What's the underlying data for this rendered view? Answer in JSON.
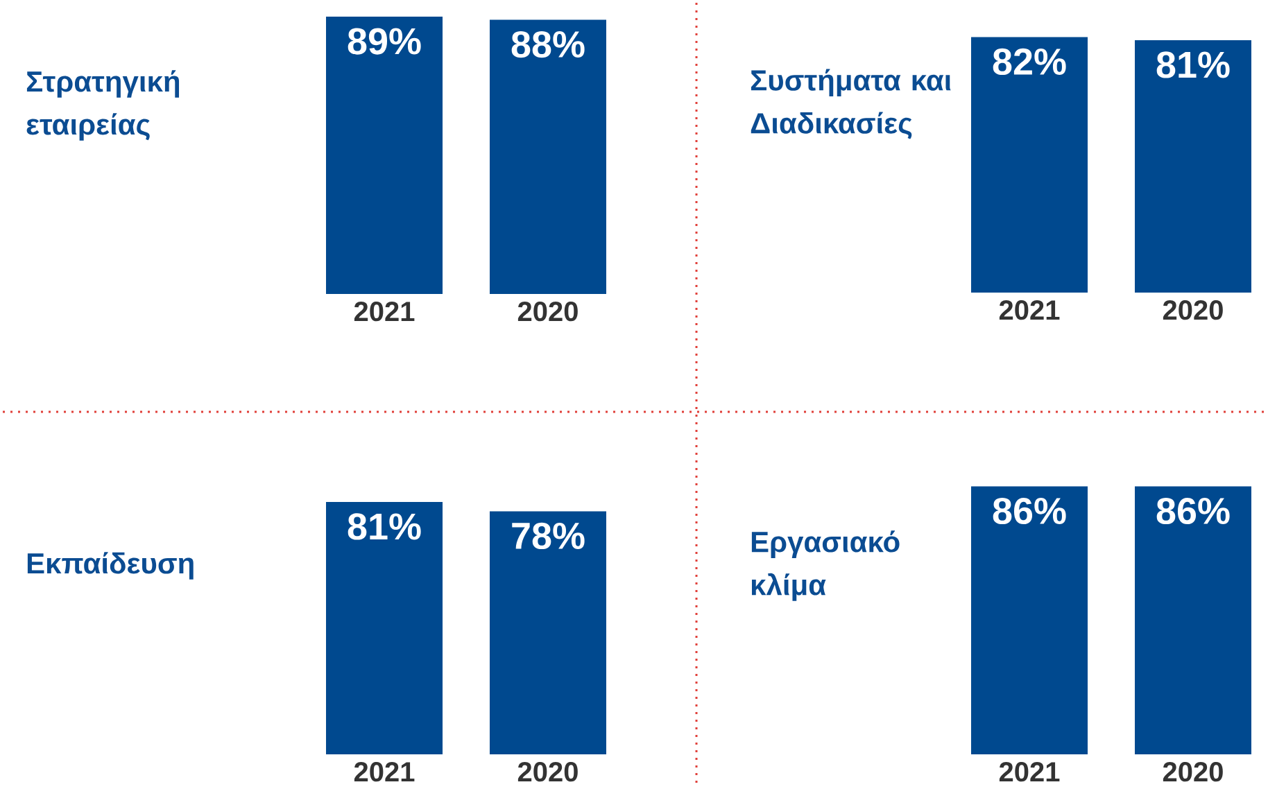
{
  "chart_data": [
    {
      "type": "bar",
      "title": "Στρατηγική εταιρείας",
      "categories": [
        "2021",
        "2020"
      ],
      "values": [
        89,
        88
      ],
      "value_labels": [
        "89%",
        "88%"
      ],
      "color": "#00498f"
    },
    {
      "type": "bar",
      "title": "Συστήματα και Διαδικασίες",
      "categories": [
        "2021",
        "2020"
      ],
      "values": [
        82,
        81
      ],
      "value_labels": [
        "82%",
        "81%"
      ],
      "color": "#00498f"
    },
    {
      "type": "bar",
      "title": "Εκπαίδευση",
      "categories": [
        "2021",
        "2020"
      ],
      "values": [
        81,
        78
      ],
      "value_labels": [
        "81%",
        "78%"
      ],
      "color": "#00498f"
    },
    {
      "type": "bar",
      "title": "Εργασιακό κλίμα",
      "categories": [
        "2021",
        "2020"
      ],
      "values": [
        86,
        86
      ],
      "value_labels": [
        "86%",
        "86%"
      ],
      "color": "#00498f"
    }
  ]
}
